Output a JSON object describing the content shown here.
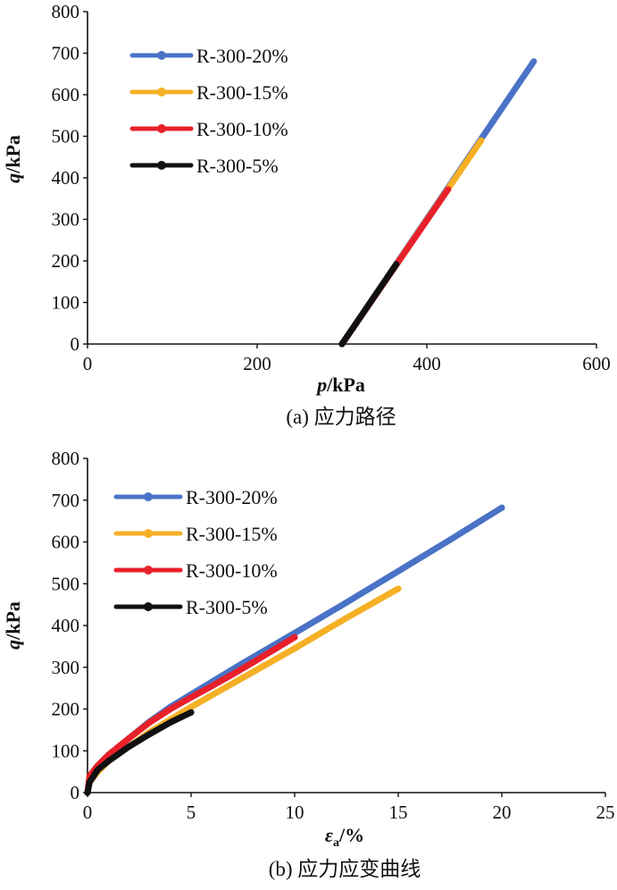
{
  "colors": {
    "R-300-20%": "#4a72c6",
    "R-300-15%": "#f5b025",
    "R-300-10%": "#e8202a",
    "R-300-5%": "#111111"
  },
  "chart_data": [
    {
      "type": "line",
      "caption": "(a) 应力路径",
      "xlabel_var": "p",
      "xlabel_unit": "/kPa",
      "ylabel_var": "q",
      "ylabel_unit": "/kPa",
      "xlim": [
        0,
        600
      ],
      "ylim": [
        0,
        800
      ],
      "xticks": [
        0,
        200,
        400,
        600
      ],
      "yticks": [
        0,
        100,
        200,
        300,
        400,
        500,
        600,
        700,
        800
      ],
      "legend_position": "top-left",
      "series": [
        {
          "name": "R-300-20%",
          "points": [
            [
              300,
              0
            ],
            [
              526,
              680
            ]
          ]
        },
        {
          "name": "R-300-15%",
          "points": [
            [
              300,
              0
            ],
            [
              464,
              490
            ]
          ]
        },
        {
          "name": "R-300-10%",
          "points": [
            [
              300,
              0
            ],
            [
              425,
              372
            ]
          ]
        },
        {
          "name": "R-300-5%",
          "points": [
            [
              300,
              0
            ],
            [
              364,
              192
            ]
          ]
        }
      ]
    },
    {
      "type": "line",
      "caption": "(b) 应力应变曲线",
      "xlabel_var": "ε",
      "xlabel_sub": "a",
      "xlabel_unit": "/%",
      "ylabel_var": "q",
      "ylabel_unit": "/kPa",
      "xlim": [
        0,
        25
      ],
      "ylim": [
        0,
        800
      ],
      "xticks": [
        0,
        5,
        10,
        15,
        20,
        25
      ],
      "yticks": [
        0,
        100,
        200,
        300,
        400,
        500,
        600,
        700,
        800
      ],
      "legend_position": "top-left",
      "series": [
        {
          "name": "R-300-20%",
          "points": [
            [
              0,
              0
            ],
            [
              0.1,
              30
            ],
            [
              0.5,
              60
            ],
            [
              1,
              85
            ],
            [
              2,
              130
            ],
            [
              3,
              170
            ],
            [
              4,
              205
            ],
            [
              5,
              235
            ],
            [
              7.5,
              310
            ],
            [
              10,
              382
            ],
            [
              12.5,
              455
            ],
            [
              15,
              530
            ],
            [
              17.5,
              605
            ],
            [
              20,
              682
            ]
          ]
        },
        {
          "name": "R-300-15%",
          "points": [
            [
              0,
              0
            ],
            [
              0.1,
              25
            ],
            [
              0.5,
              50
            ],
            [
              1,
              75
            ],
            [
              2,
              110
            ],
            [
              3,
              145
            ],
            [
              4,
              175
            ],
            [
              5,
              205
            ],
            [
              7.5,
              275
            ],
            [
              10,
              345
            ],
            [
              12.5,
              418
            ],
            [
              15,
              488
            ]
          ]
        },
        {
          "name": "R-300-10%",
          "points": [
            [
              0,
              0
            ],
            [
              0.1,
              40
            ],
            [
              0.5,
              65
            ],
            [
              1,
              90
            ],
            [
              2,
              130
            ],
            [
              3,
              168
            ],
            [
              4,
              200
            ],
            [
              5,
              228
            ],
            [
              6,
              255
            ],
            [
              7,
              283
            ],
            [
              8,
              312
            ],
            [
              9,
              342
            ],
            [
              10,
              372
            ]
          ]
        },
        {
          "name": "R-300-5%",
          "points": [
            [
              0,
              0
            ],
            [
              0.1,
              25
            ],
            [
              0.5,
              55
            ],
            [
              1,
              75
            ],
            [
              2,
              110
            ],
            [
              3,
              140
            ],
            [
              4,
              168
            ],
            [
              5,
              192
            ]
          ]
        }
      ]
    }
  ]
}
